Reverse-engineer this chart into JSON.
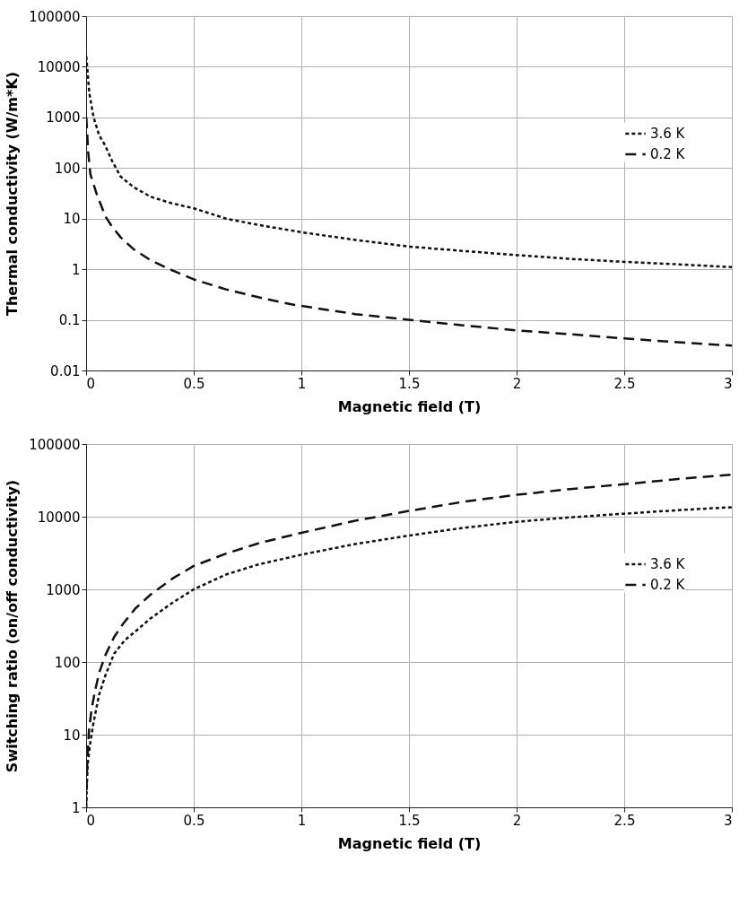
{
  "chart_data": [
    {
      "type": "line",
      "xlabel": "Magnetic field (T)",
      "ylabel": "Thermal conductivity (W/m*K)",
      "log": "y",
      "grid": true,
      "legend": "right",
      "marker": "none",
      "xlim": [
        0,
        3
      ],
      "xticks": [
        0,
        0.5,
        1,
        1.5,
        2,
        2.5,
        3
      ],
      "ylim": [
        0.01,
        100000
      ],
      "yticks": [
        0.01,
        0.1,
        1,
        10,
        100,
        1000,
        10000,
        100000
      ],
      "series": [
        {
          "name": "3.6 K",
          "color": "#111111",
          "line_style": "dotted",
          "x": [
            0.001,
            0.015,
            0.035,
            0.06,
            0.09,
            0.12,
            0.16,
            0.22,
            0.3,
            0.4,
            0.5,
            0.65,
            0.8,
            1.0,
            1.25,
            1.5,
            1.75,
            2.0,
            2.25,
            2.5,
            2.75,
            3.0
          ],
          "values": [
            16000,
            3000,
            1000,
            450,
            270,
            140,
            68,
            42,
            27,
            20,
            16,
            10,
            7.5,
            5.4,
            3.8,
            2.8,
            2.3,
            1.9,
            1.6,
            1.4,
            1.25,
            1.1
          ]
        },
        {
          "name": "0.2 K",
          "color": "#111111",
          "line_style": "dashed",
          "x": [
            0.001,
            0.01,
            0.02,
            0.05,
            0.09,
            0.12,
            0.16,
            0.22,
            0.3,
            0.4,
            0.5,
            0.65,
            0.8,
            0.96,
            1.25,
            1.5,
            1.75,
            2.0,
            2.25,
            2.5,
            2.75,
            3.0
          ],
          "values": [
            1000,
            200,
            75,
            30,
            11,
            7,
            4.3,
            2.5,
            1.5,
            0.95,
            0.63,
            0.4,
            0.28,
            0.2,
            0.13,
            0.1,
            0.078,
            0.062,
            0.052,
            0.043,
            0.036,
            0.031
          ]
        }
      ]
    },
    {
      "type": "line",
      "xlabel": "Magnetic field (T)",
      "ylabel": "Switching ratio (on/off conductivity)",
      "log": "y",
      "grid": true,
      "legend": "right",
      "marker": "none",
      "xlim": [
        0,
        3
      ],
      "xticks": [
        0,
        0.5,
        1,
        1.5,
        2,
        2.5,
        3
      ],
      "ylim": [
        1,
        100000
      ],
      "yticks": [
        1,
        10,
        100,
        1000,
        10000,
        100000
      ],
      "series": [
        {
          "name": "3.6 K",
          "color": "#111111",
          "line_style": "dotted",
          "x": [
            0.0,
            0.007,
            0.02,
            0.035,
            0.06,
            0.09,
            0.13,
            0.18,
            0.23,
            0.3,
            0.4,
            0.5,
            0.65,
            0.8,
            1.0,
            1.25,
            1.5,
            1.75,
            2.0,
            2.25,
            2.5,
            2.75,
            3.0
          ],
          "values": [
            1,
            3.8,
            8,
            15,
            35,
            66,
            130,
            200,
            265,
            400,
            650,
            1000,
            1600,
            2200,
            3000,
            4200,
            5500,
            7000,
            8500,
            9800,
            11000,
            12300,
            13500
          ]
        },
        {
          "name": "0.2 K",
          "color": "#111111",
          "line_style": "dashed",
          "x": [
            0.0,
            0.005,
            0.013,
            0.025,
            0.04,
            0.06,
            0.09,
            0.13,
            0.17,
            0.23,
            0.3,
            0.4,
            0.5,
            0.65,
            0.8,
            1.0,
            1.25,
            1.5,
            1.75,
            2.0,
            2.25,
            2.5,
            2.75,
            3.0
          ],
          "values": [
            1,
            4,
            11,
            22,
            38,
            70,
            125,
            220,
            330,
            550,
            850,
            1400,
            2100,
            3100,
            4300,
            6000,
            8800,
            12000,
            16000,
            20000,
            24000,
            28000,
            33000,
            38000
          ]
        }
      ]
    }
  ]
}
